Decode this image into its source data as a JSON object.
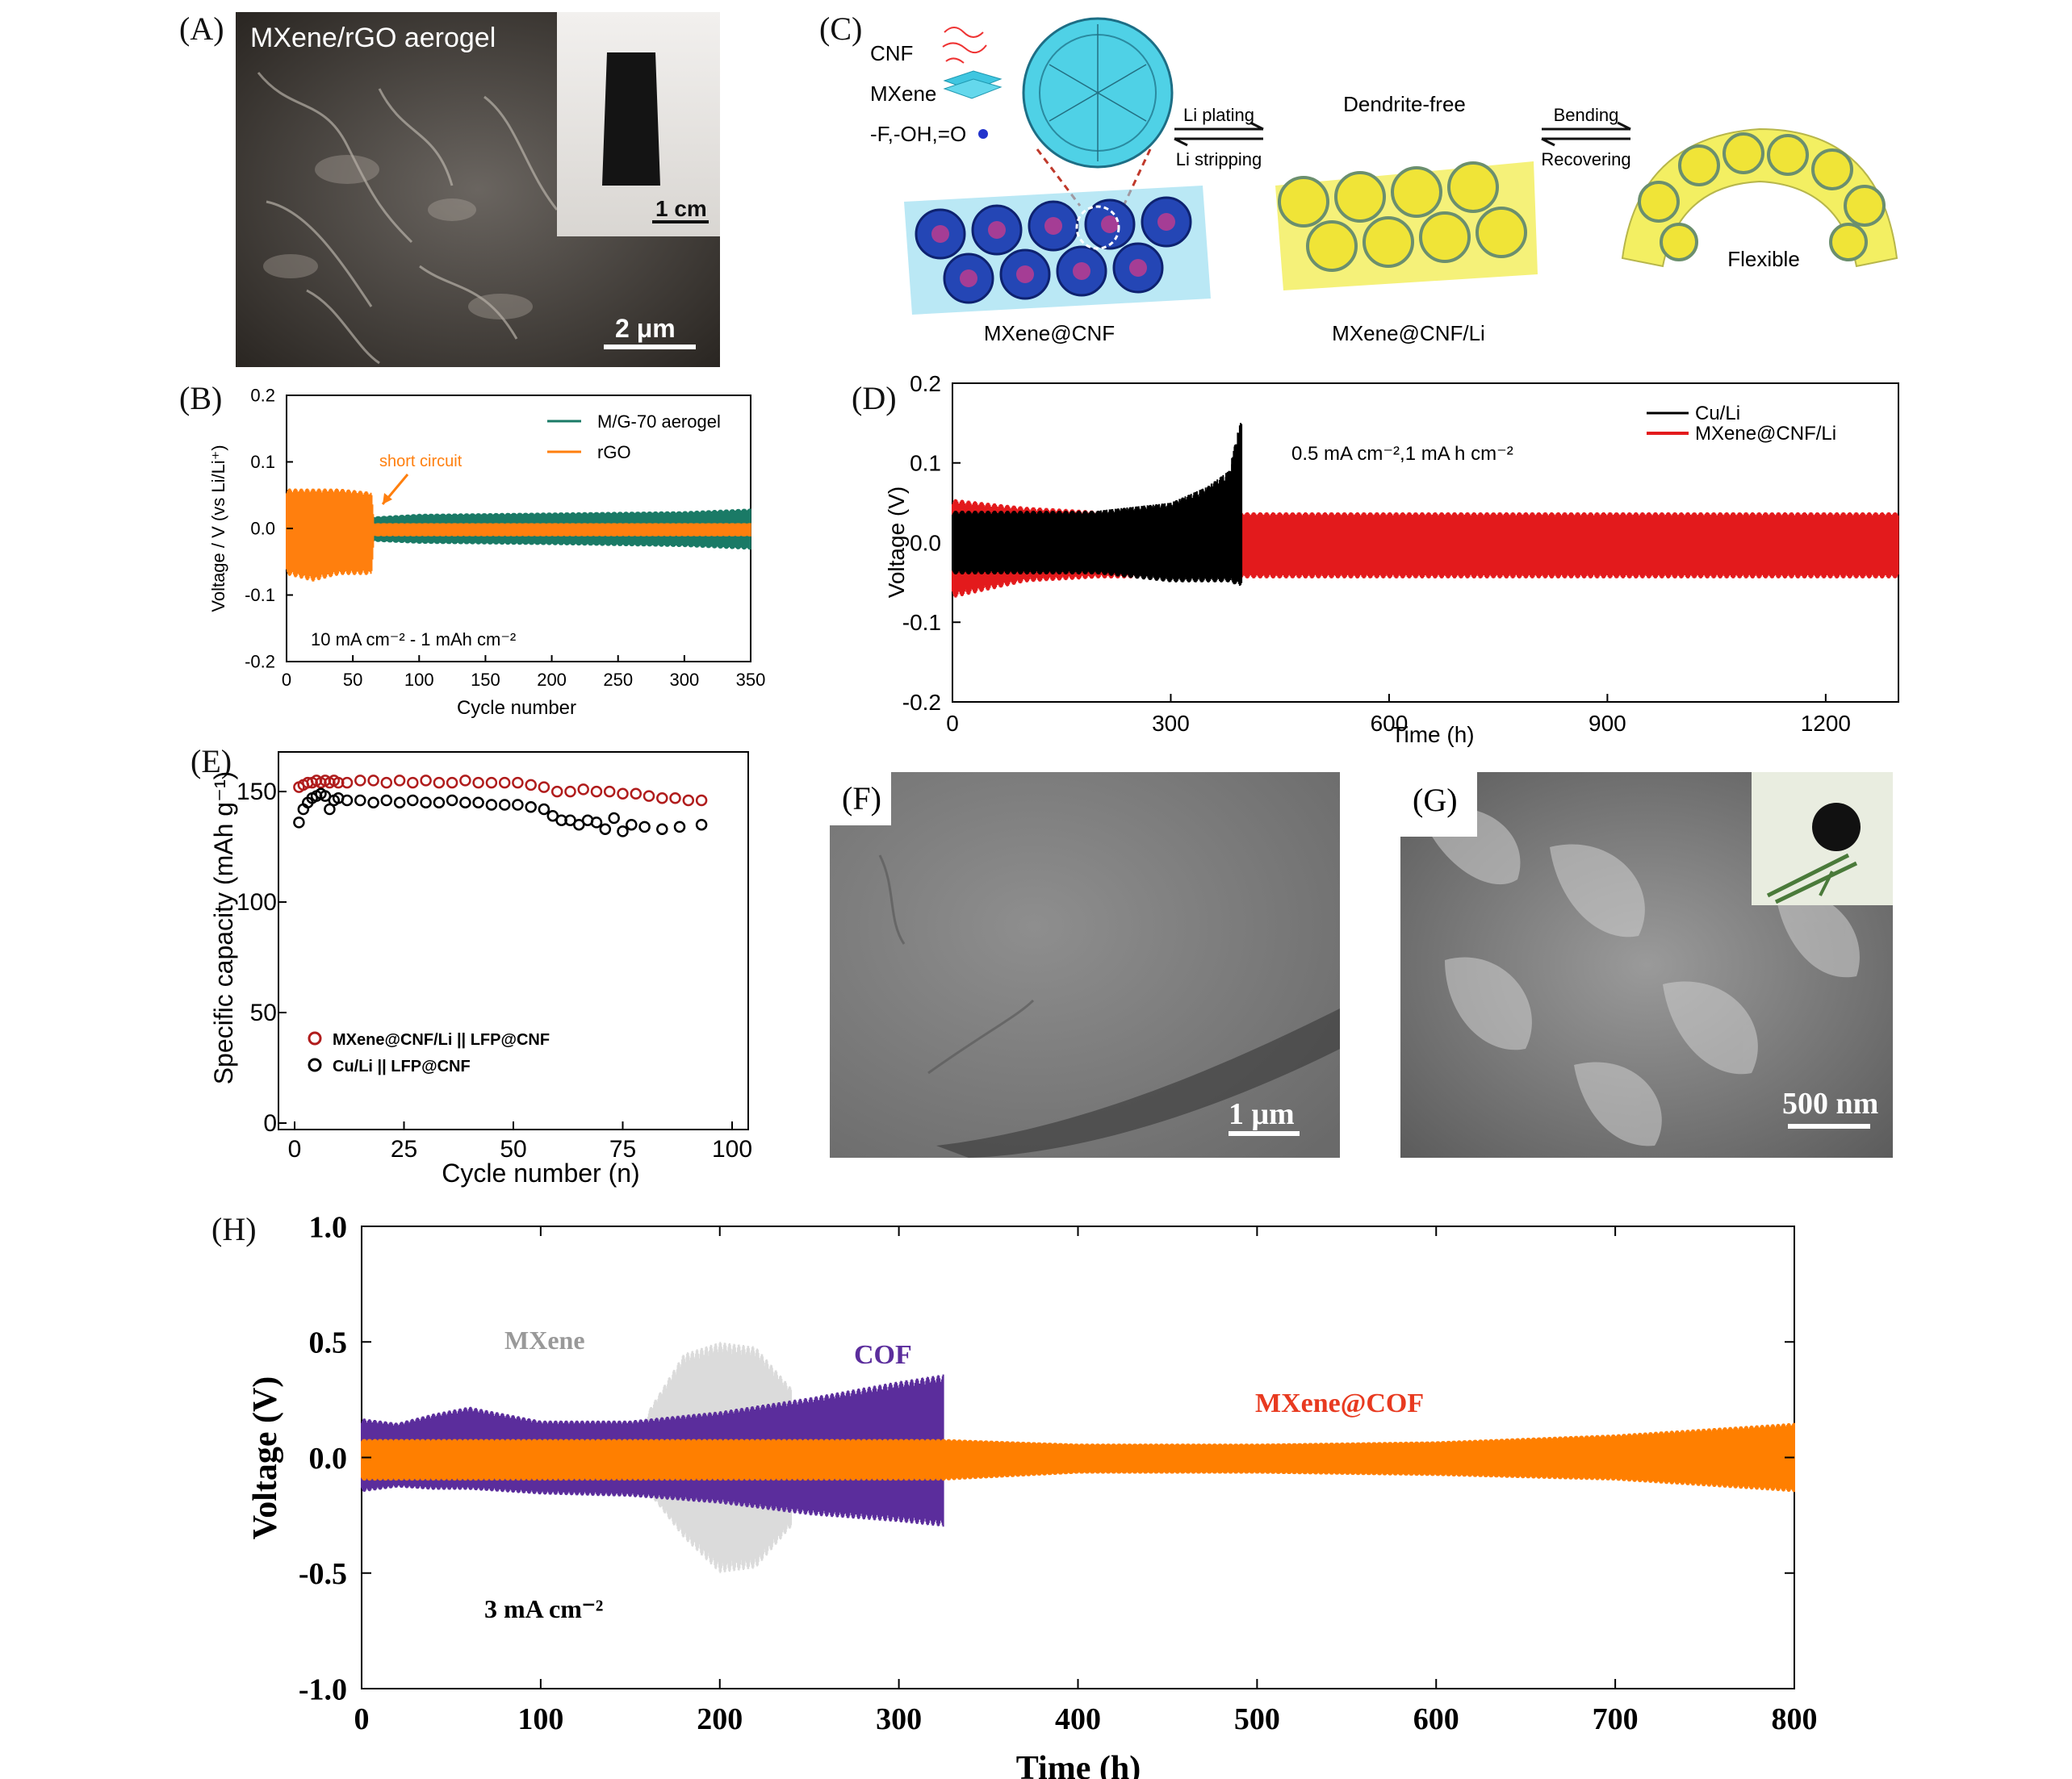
{
  "colors": {
    "orange": "#ff7f0e",
    "teal": "#1a7a66",
    "red": "#e31a1c",
    "black": "#000000",
    "purple": "#5b2d9c",
    "hOrange": "#ff7f00",
    "grey": "#cccccc",
    "yellow": "#f2ee3a",
    "blue": "#2a4fbf",
    "cyan": "#3fd3e6"
  },
  "panels": {
    "A": {
      "label": "(A)",
      "title": "MXene/rGO aerogel",
      "inset_scale": "1 cm",
      "scale": "2 μm"
    },
    "B": {
      "label": "(B)"
    },
    "C": {
      "label": "(C)",
      "legend": {
        "cnf": "CNF",
        "mxene": "MXene",
        "groups": "-F,-OH,=O"
      },
      "arrow1_top": "Li plating",
      "arrow1_bottom": "Li stripping",
      "arrow2_top": "Bending",
      "arrow2_bottom": "Recovering",
      "dendrite_free": "Dendrite-free",
      "flexible": "Flexible",
      "name1": "MXene@CNF",
      "name2": "MXene@CNF/Li"
    },
    "D": {
      "label": "(D)"
    },
    "E": {
      "label": "(E)"
    },
    "F": {
      "label": "(F)",
      "scale": "1 μm"
    },
    "G": {
      "label": "(G)",
      "scale": "500 nm"
    },
    "H": {
      "label": "(H)"
    }
  },
  "chart_data": [
    {
      "id": "B",
      "type": "line",
      "xlabel": "Cycle number",
      "ylabel": "Voltage / V (vs Li/Li⁺)",
      "xlim": [
        0,
        350
      ],
      "ylim": [
        -0.2,
        0.2
      ],
      "xticks": [
        0,
        50,
        100,
        150,
        200,
        250,
        300,
        350
      ],
      "yticks": [
        -0.2,
        -0.1,
        0.0,
        0.1,
        0.2
      ],
      "condition": "10 mA cm⁻² - 1 mAh cm⁻²",
      "annotation": "short circuit",
      "annotation_x": 65,
      "series": [
        {
          "name": "M/G-70 aerogel",
          "x": [
            0,
            65,
            100,
            200,
            300,
            350
          ],
          "upper": [
            0.0,
            0.018,
            0.022,
            0.024,
            0.026,
            0.03
          ],
          "lower": [
            0.0,
            -0.02,
            -0.023,
            -0.025,
            -0.028,
            -0.032
          ]
        },
        {
          "name": "rGO",
          "x": [
            0,
            20,
            40,
            64,
            66,
            350
          ],
          "upper": [
            0.06,
            0.06,
            0.06,
            0.055,
            0.008,
            0.008
          ],
          "lower": [
            -0.07,
            -0.08,
            -0.07,
            -0.07,
            -0.012,
            -0.012
          ]
        }
      ]
    },
    {
      "id": "D",
      "type": "line",
      "xlabel": "Time (h)",
      "ylabel": "Voltage (V)",
      "xlim": [
        0,
        1300
      ],
      "ylim": [
        -0.2,
        0.2
      ],
      "xticks": [
        0,
        300,
        600,
        900,
        1200
      ],
      "yticks": [
        -0.2,
        -0.1,
        0.0,
        0.1,
        0.2
      ],
      "condition": "0.5 mA cm⁻²,1 mA h cm⁻²",
      "series": [
        {
          "name": "Cu/Li",
          "x": [
            0,
            100,
            200,
            300,
            350,
            380,
            395,
            398
          ],
          "upper": [
            0.04,
            0.04,
            0.04,
            0.05,
            0.07,
            0.09,
            0.15,
            0.15
          ],
          "lower": [
            -0.04,
            -0.04,
            -0.04,
            -0.05,
            -0.05,
            -0.05,
            -0.055,
            -0.05
          ]
        },
        {
          "name": "MXene@CNF/Li",
          "x": [
            0,
            100,
            200,
            400,
            600,
            900,
            1200,
            1300
          ],
          "upper": [
            0.055,
            0.045,
            0.04,
            0.038,
            0.038,
            0.038,
            0.038,
            0.038
          ],
          "lower": [
            -0.07,
            -0.05,
            -0.045,
            -0.045,
            -0.045,
            -0.045,
            -0.045,
            -0.045
          ]
        }
      ]
    },
    {
      "id": "E",
      "type": "scatter",
      "xlabel": "Cycle number (n)",
      "ylabel": "Specific capacity (mAh g⁻¹)",
      "xlim": [
        0,
        100
      ],
      "ylim": [
        0,
        165
      ],
      "xticks": [
        0,
        25,
        50,
        75,
        100
      ],
      "yticks": [
        0,
        50,
        100,
        150
      ],
      "series": [
        {
          "name": "MXene@CNF/Li || LFP@CNF",
          "x": [
            1,
            2,
            3,
            4,
            5,
            6,
            7,
            8,
            9,
            10,
            12,
            15,
            18,
            21,
            24,
            27,
            30,
            33,
            36,
            39,
            42,
            45,
            48,
            51,
            54,
            57,
            60,
            63,
            66,
            69,
            72,
            75,
            78,
            81,
            84,
            87,
            90,
            93
          ],
          "y": [
            152,
            153,
            154,
            154,
            155,
            154,
            155,
            154,
            155,
            154,
            154,
            155,
            155,
            154,
            155,
            154,
            155,
            154,
            154,
            155,
            154,
            154,
            154,
            154,
            153,
            152,
            150,
            150,
            151,
            150,
            150,
            149,
            149,
            148,
            147,
            147,
            146,
            146
          ]
        },
        {
          "name": "Cu/Li || LFP@CNF",
          "x": [
            1,
            2,
            3,
            4,
            5,
            6,
            7,
            8,
            9,
            10,
            12,
            15,
            18,
            21,
            24,
            27,
            30,
            33,
            36,
            39,
            42,
            45,
            48,
            51,
            54,
            57,
            59,
            61,
            63,
            65,
            67,
            69,
            71,
            73,
            75,
            77,
            80,
            84,
            88,
            93
          ],
          "y": [
            136,
            142,
            145,
            147,
            148,
            149,
            148,
            142,
            146,
            147,
            146,
            146,
            145,
            146,
            145,
            146,
            145,
            145,
            146,
            145,
            145,
            144,
            144,
            144,
            143,
            142,
            139,
            137,
            137,
            135,
            137,
            136,
            133,
            138,
            132,
            135,
            134,
            133,
            134,
            135
          ]
        }
      ]
    },
    {
      "id": "H",
      "type": "line",
      "xlabel": "Time (h)",
      "ylabel": "Voltage (V)",
      "xlim": [
        0,
        800
      ],
      "ylim": [
        -1.0,
        1.0
      ],
      "xticks": [
        0,
        100,
        200,
        300,
        400,
        500,
        600,
        700,
        800
      ],
      "yticks": [
        -1.0,
        -0.5,
        0.0,
        0.5,
        1.0
      ],
      "condition": "3 mA cm⁻²",
      "series": [
        {
          "name": "MXene",
          "x": [
            160,
            180,
            200,
            220,
            240
          ],
          "upper": [
            0.2,
            0.45,
            0.5,
            0.48,
            0.3
          ],
          "lower": [
            -0.15,
            -0.35,
            -0.5,
            -0.48,
            -0.3
          ]
        },
        {
          "name": "COF",
          "x": [
            0,
            20,
            40,
            60,
            80,
            100,
            150,
            200,
            250,
            300,
            325
          ],
          "upper": [
            0.17,
            0.15,
            0.19,
            0.22,
            0.19,
            0.16,
            0.16,
            0.2,
            0.26,
            0.33,
            0.36
          ],
          "lower": [
            -0.15,
            -0.13,
            -0.14,
            -0.14,
            -0.15,
            -0.16,
            -0.17,
            -0.2,
            -0.25,
            -0.28,
            -0.3
          ]
        },
        {
          "name": "MXene@COF",
          "x": [
            0,
            100,
            200,
            300,
            325,
            400,
            500,
            600,
            700,
            800
          ],
          "upper": [
            0.08,
            0.08,
            0.08,
            0.08,
            0.08,
            0.06,
            0.06,
            0.07,
            0.1,
            0.15
          ],
          "lower": [
            -0.1,
            -0.1,
            -0.1,
            -0.1,
            -0.1,
            -0.07,
            -0.07,
            -0.08,
            -0.1,
            -0.15
          ]
        }
      ]
    }
  ]
}
